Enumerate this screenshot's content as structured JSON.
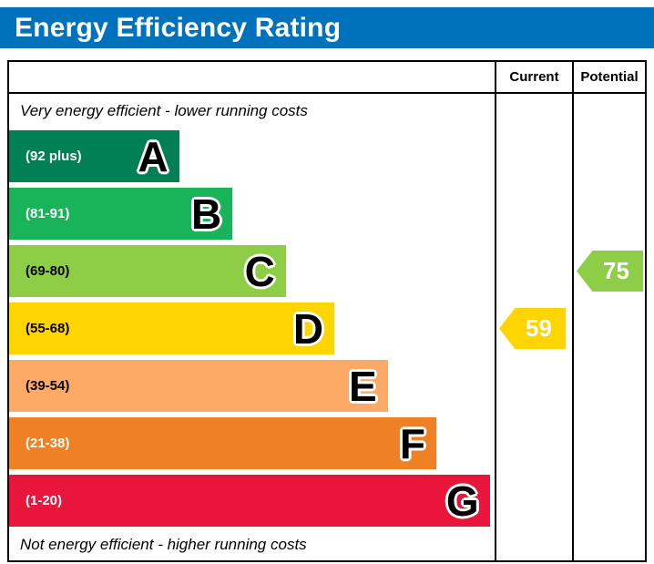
{
  "title": "Energy Efficiency Rating",
  "header": {
    "current": "Current",
    "potential": "Potential"
  },
  "notes": {
    "top": "Very energy efficient - lower running costs",
    "bottom": "Not energy efficient - higher running costs"
  },
  "bands": [
    {
      "letter": "A",
      "range": "(92 plus)",
      "color": "#008054",
      "text_color": "#ffffff",
      "width": "35%"
    },
    {
      "letter": "B",
      "range": "(81-91)",
      "color": "#19b459",
      "text_color": "#ffffff",
      "width": "46%"
    },
    {
      "letter": "C",
      "range": "(69-80)",
      "color": "#8dce46",
      "text_color": "#000000",
      "width": "57%"
    },
    {
      "letter": "D",
      "range": "(55-68)",
      "color": "#ffd500",
      "text_color": "#000000",
      "width": "67%"
    },
    {
      "letter": "E",
      "range": "(39-54)",
      "color": "#fcaa65",
      "text_color": "#000000",
      "width": "78%"
    },
    {
      "letter": "F",
      "range": "(21-38)",
      "color": "#ef8023",
      "text_color": "#ffffff",
      "width": "88%"
    },
    {
      "letter": "G",
      "range": "(1-20)",
      "color": "#e9153b",
      "text_color": "#ffffff",
      "width": "99%"
    }
  ],
  "markers": {
    "current": {
      "value": "59",
      "color": "#ffd500"
    },
    "potential": {
      "value": "75",
      "color": "#8dce46"
    }
  },
  "colors": {
    "title_bg": "#0072bc",
    "title_text": "#ffffff",
    "border": "#000000"
  },
  "chart_data": {
    "type": "bar",
    "title": "Energy Efficiency Rating",
    "categories": [
      "A",
      "B",
      "C",
      "D",
      "E",
      "F",
      "G"
    ],
    "band_ranges": [
      "92 plus",
      "81-91",
      "69-80",
      "55-68",
      "39-54",
      "21-38",
      "1-20"
    ],
    "band_colors": [
      "#008054",
      "#19b459",
      "#8dce46",
      "#ffd500",
      "#fcaa65",
      "#ef8023",
      "#e9153b"
    ],
    "bar_widths_pct": [
      35,
      46,
      57,
      67,
      78,
      88,
      99
    ],
    "column_headers": [
      "Current",
      "Potential"
    ],
    "current_rating": 59,
    "current_band": "D",
    "potential_rating": 75,
    "potential_band": "C",
    "top_annotation": "Very energy efficient - lower running costs",
    "bottom_annotation": "Not energy efficient - higher running costs",
    "legend_position": "none",
    "grid": false
  }
}
